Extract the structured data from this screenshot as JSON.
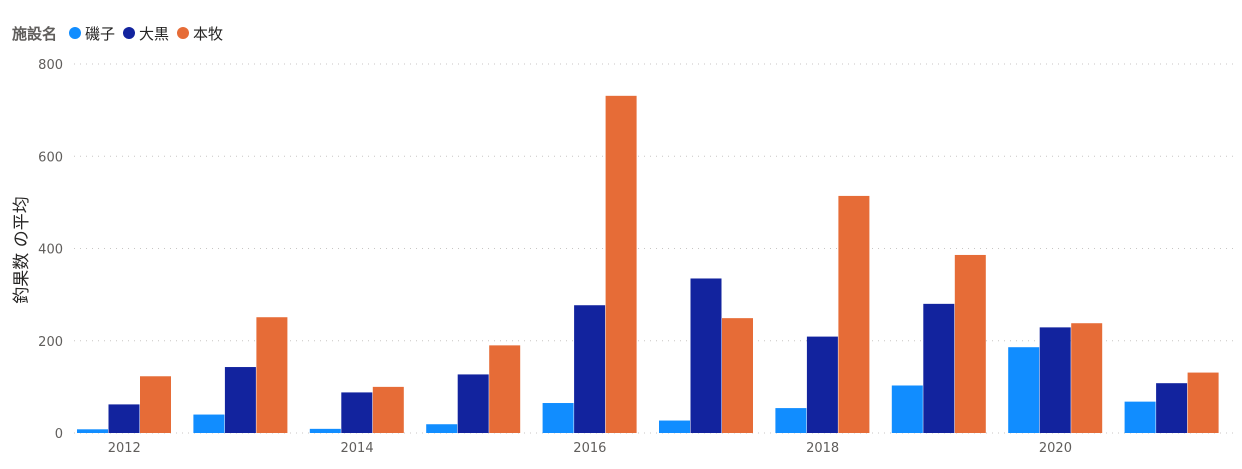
{
  "legend": {
    "title": "施設名",
    "items": [
      {
        "label": "磯子",
        "color": "#118DFF"
      },
      {
        "label": "大黒",
        "color": "#12239E"
      },
      {
        "label": "本牧",
        "color": "#E66C37"
      }
    ]
  },
  "chart_data": {
    "type": "bar",
    "ylabel": "釣果数 の平均",
    "xlabel": "",
    "ylim": [
      0,
      800
    ],
    "yticks": [
      0,
      200,
      400,
      600,
      800
    ],
    "x": [
      2012,
      2013,
      2014,
      2015,
      2016,
      2017,
      2018,
      2019,
      2020,
      2021
    ],
    "xtick_labels": [
      "2012",
      "2014",
      "2016",
      "2018",
      "2020"
    ],
    "xtick_values": [
      2012,
      2014,
      2016,
      2018,
      2020
    ],
    "grid": true,
    "legend_position": "top-left",
    "series": [
      {
        "name": "磯子",
        "color": "#118DFF",
        "values": [
          8,
          40,
          9,
          19,
          65,
          27,
          54,
          103,
          186,
          68
        ]
      },
      {
        "name": "大黒",
        "color": "#12239E",
        "values": [
          62,
          143,
          88,
          127,
          277,
          335,
          209,
          280,
          229,
          108
        ]
      },
      {
        "name": "本牧",
        "color": "#E66C37",
        "values": [
          123,
          251,
          100,
          190,
          731,
          249,
          514,
          386,
          238,
          131
        ]
      }
    ]
  }
}
